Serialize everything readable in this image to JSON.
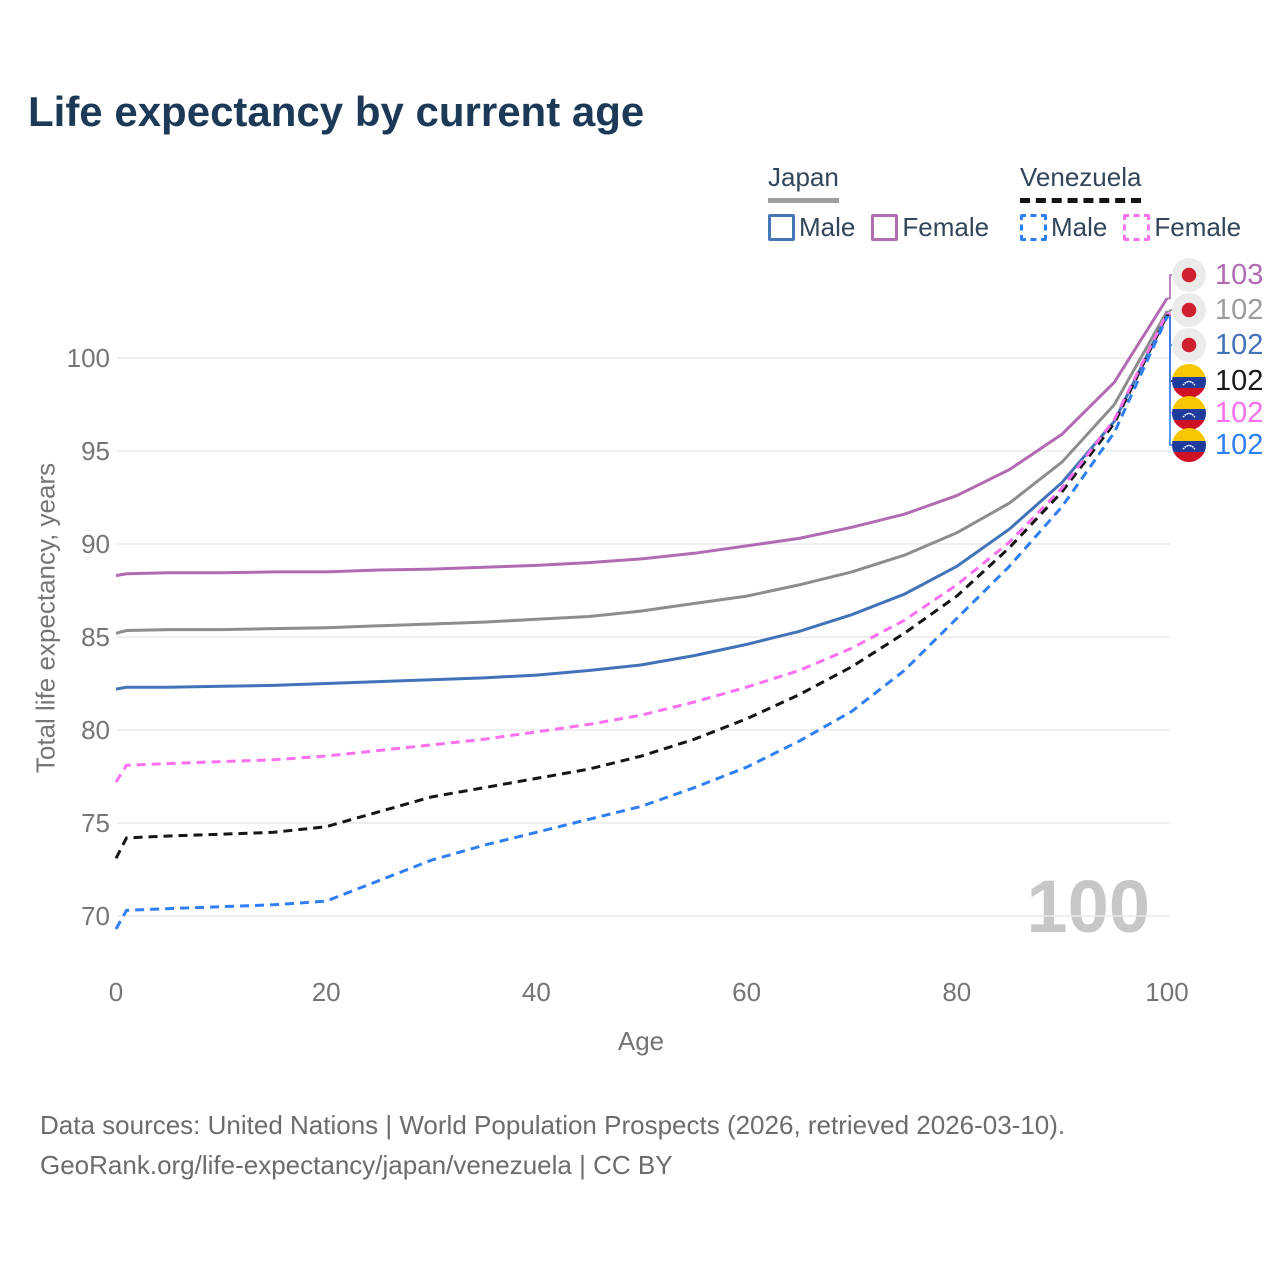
{
  "header": {
    "title": "Life expectancy by current age"
  },
  "legend": {
    "japan": {
      "label": "Japan",
      "items": [
        {
          "label": "Male"
        },
        {
          "label": "Female"
        }
      ]
    },
    "venezuela": {
      "label": "Venezuela",
      "items": [
        {
          "label": "Male"
        },
        {
          "label": "Female"
        }
      ]
    }
  },
  "footer": {
    "line1": "Data sources: United Nations | World Population Prospects (2026, retrieved 2026-03-10).",
    "line2": "GeoRank.org/life-expectancy/japan/venezuela | CC BY"
  },
  "colors": {
    "title": "#1c3a57",
    "gridline": "#eaeaea",
    "axis_text": "#757575",
    "watermark": "#c7c7c7",
    "japan_male": "#4273b8",
    "japan_female": "#b16bb3",
    "japan_both": "#8d8d8d",
    "venezuela_male": "#2f7ff2",
    "venezuela_female": "#fb70ef",
    "venezuela_both": "#151515"
  },
  "chart_data": {
    "type": "line",
    "title": "Life expectancy by current age",
    "xlabel": "Age",
    "ylabel": "Total life expectancy, years",
    "age_indicator": "100",
    "x_ticks": [
      0,
      20,
      40,
      60,
      80,
      100
    ],
    "y_ticks": [
      70,
      75,
      80,
      85,
      90,
      95,
      100
    ],
    "xlim": [
      0,
      100
    ],
    "ylim": [
      68,
      104
    ],
    "grid": "horizontal",
    "legend_position": "top-right",
    "x": [
      0,
      1,
      5,
      10,
      15,
      20,
      25,
      30,
      35,
      40,
      45,
      50,
      55,
      60,
      65,
      70,
      75,
      80,
      85,
      90,
      95,
      100
    ],
    "series": [
      {
        "name": "Japan Female",
        "country": "japan",
        "style": "solid",
        "color": "#b16bb3",
        "end_label": "103",
        "end_label_color": "#b16bb3",
        "values": [
          88.3,
          88.4,
          88.45,
          88.45,
          88.5,
          88.5,
          88.6,
          88.65,
          88.75,
          88.85,
          89.0,
          89.2,
          89.5,
          89.9,
          90.3,
          90.9,
          91.6,
          92.6,
          94.0,
          95.9,
          98.7,
          103.2
        ]
      },
      {
        "name": "Japan Both sexes",
        "country": "japan",
        "style": "solid",
        "color": "#8d8d8d",
        "end_label": "102",
        "end_label_color": "#9d9d9d",
        "values": [
          85.2,
          85.35,
          85.4,
          85.4,
          85.45,
          85.5,
          85.6,
          85.7,
          85.8,
          85.95,
          86.1,
          86.4,
          86.8,
          87.2,
          87.8,
          88.5,
          89.4,
          90.6,
          92.2,
          94.4,
          97.5,
          102.5
        ]
      },
      {
        "name": "Japan Male",
        "country": "japan",
        "style": "solid",
        "color": "#4273b8",
        "end_label": "102",
        "end_label_color": "#4273b8",
        "values": [
          82.2,
          82.3,
          82.3,
          82.35,
          82.4,
          82.5,
          82.6,
          82.7,
          82.8,
          82.95,
          83.2,
          83.5,
          84.0,
          84.6,
          85.3,
          86.2,
          87.3,
          88.8,
          90.8,
          93.3,
          96.6,
          102.3
        ]
      },
      {
        "name": "Venezuela Both sexes",
        "country": "venezuela",
        "style": "dashed",
        "color": "#151515",
        "end_label": "102",
        "end_label_color": "#1a1a1a",
        "values": [
          73.1,
          74.2,
          74.3,
          74.4,
          74.5,
          74.8,
          75.6,
          76.4,
          76.9,
          77.4,
          77.9,
          78.6,
          79.5,
          80.6,
          81.9,
          83.4,
          85.2,
          87.2,
          89.8,
          92.8,
          96.5,
          102.3
        ]
      },
      {
        "name": "Venezuela Female",
        "country": "venezuela",
        "style": "dashed",
        "color": "#fb70ef",
        "end_label": "102",
        "end_label_color": "#fb70ef",
        "values": [
          77.2,
          78.1,
          78.2,
          78.3,
          78.4,
          78.6,
          78.9,
          79.2,
          79.5,
          79.9,
          80.3,
          80.8,
          81.5,
          82.3,
          83.2,
          84.4,
          85.9,
          87.8,
          90.1,
          93.0,
          96.7,
          102.4
        ]
      },
      {
        "name": "Venezuela Male",
        "country": "venezuela",
        "style": "dashed",
        "color": "#2f7ff2",
        "end_label": "102",
        "end_label_color": "#2f7ff2",
        "values": [
          69.3,
          70.3,
          70.4,
          70.5,
          70.6,
          70.8,
          71.9,
          73.0,
          73.8,
          74.5,
          75.2,
          75.9,
          76.9,
          78.0,
          79.4,
          81.0,
          83.2,
          86.0,
          88.8,
          92.0,
          96.0,
          102.2
        ]
      }
    ]
  }
}
